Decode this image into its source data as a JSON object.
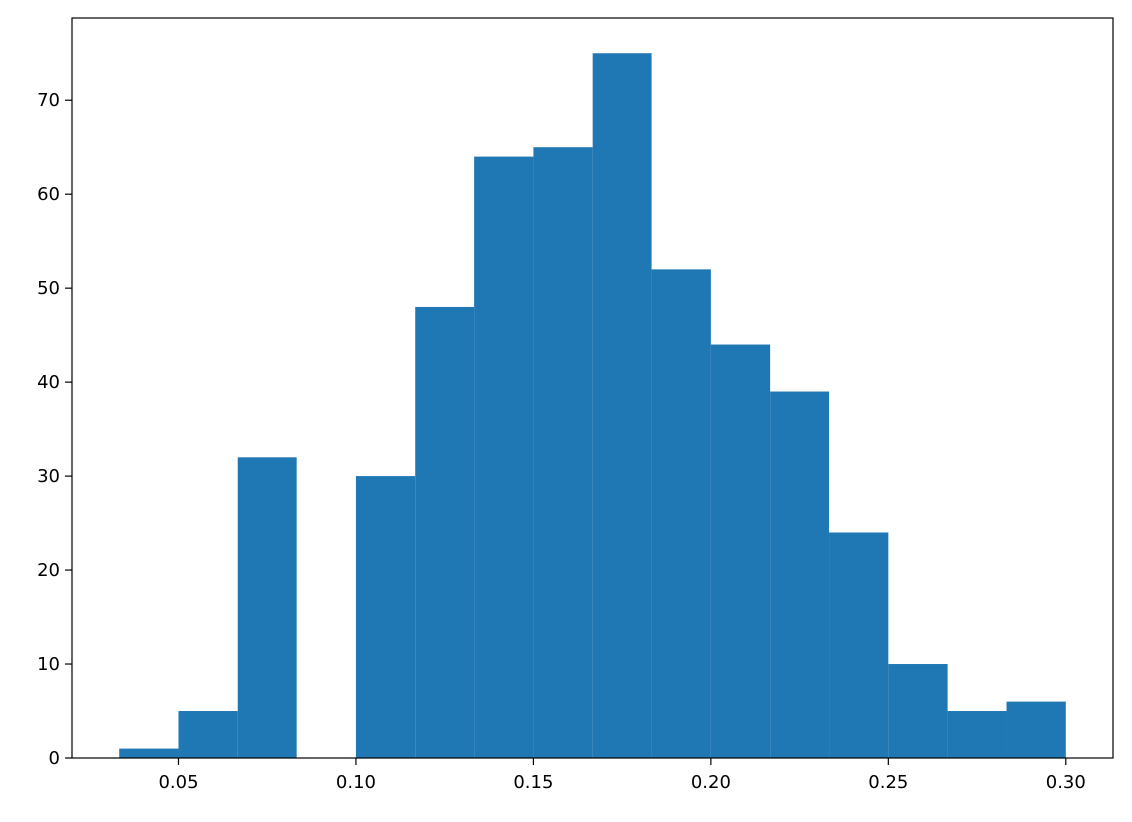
{
  "chart_data": {
    "type": "histogram",
    "bins": [
      0.0333,
      0.05,
      0.0667,
      0.0833,
      0.1,
      0.1167,
      0.1333,
      0.15,
      0.1667,
      0.1833,
      0.2,
      0.2167,
      0.2333,
      0.25,
      0.2667,
      0.2833,
      0.3
    ],
    "values": [
      1,
      5,
      32,
      0,
      30,
      48,
      64,
      65,
      75,
      52,
      44,
      39,
      24,
      10,
      5,
      6
    ],
    "color": "#1f77b4",
    "xlim": [
      0.02,
      0.3133
    ],
    "ylim": [
      0,
      78.75
    ],
    "xticks": [
      {
        "value": 0.05,
        "label": "0.05"
      },
      {
        "value": 0.1,
        "label": "0.10"
      },
      {
        "value": 0.15,
        "label": "0.15"
      },
      {
        "value": 0.2,
        "label": "0.20"
      },
      {
        "value": 0.25,
        "label": "0.25"
      },
      {
        "value": 0.3,
        "label": "0.30"
      }
    ],
    "yticks": [
      0,
      10,
      20,
      30,
      40,
      50,
      60,
      70
    ]
  }
}
